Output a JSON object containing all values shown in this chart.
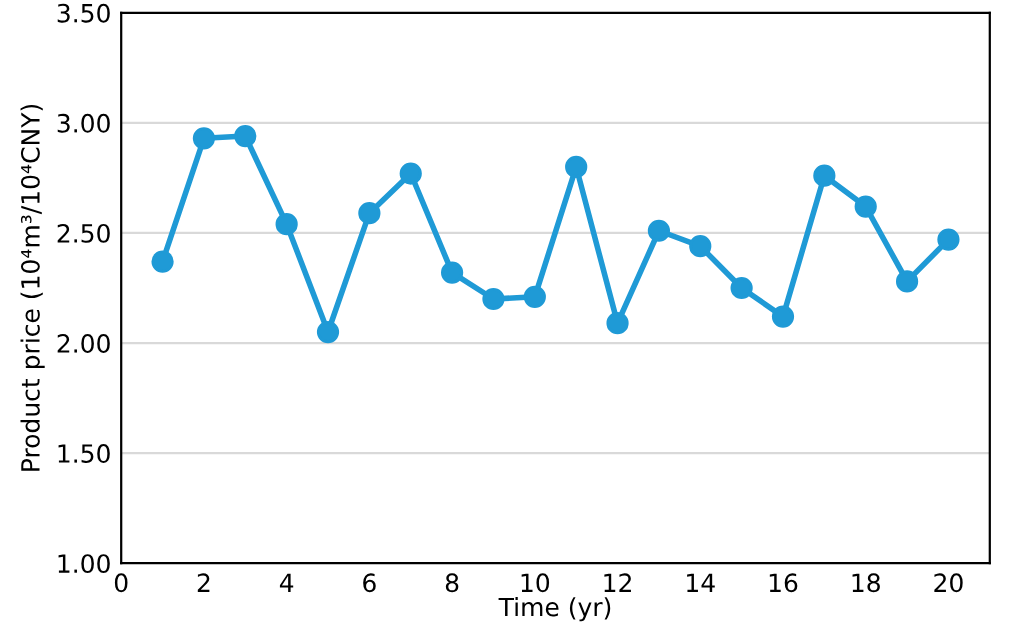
{
  "chart_data": {
    "type": "line",
    "xlabel": "Time (yr)",
    "ylabel": "Product price (10⁴m³/10⁴CNY)",
    "x": [
      1,
      2,
      3,
      4,
      5,
      6,
      7,
      8,
      9,
      10,
      11,
      12,
      13,
      14,
      15,
      16,
      17,
      18,
      19,
      20
    ],
    "series": [
      {
        "color": "#1f9ad6",
        "values": [
          2.37,
          2.93,
          2.94,
          2.54,
          2.05,
          2.59,
          2.77,
          2.32,
          2.2,
          2.21,
          2.8,
          2.09,
          2.51,
          2.44,
          2.25,
          2.12,
          2.76,
          2.62,
          2.28,
          2.47
        ]
      }
    ],
    "xlim": [
      0,
      21
    ],
    "xticks": [
      0,
      2,
      4,
      6,
      8,
      10,
      12,
      14,
      16,
      18,
      20
    ],
    "ylim": [
      1.0,
      3.5
    ],
    "yticks": [
      {
        "value": 1.0,
        "label": "1.00"
      },
      {
        "value": 1.5,
        "label": "1.50"
      },
      {
        "value": 2.0,
        "label": "2.00"
      },
      {
        "value": 2.5,
        "label": "2.50"
      },
      {
        "value": 3.0,
        "label": "3.00"
      },
      {
        "value": 3.5,
        "label": "3.50"
      }
    ],
    "grid": "y",
    "marker": "circle",
    "line_style": "solid",
    "legend": false
  }
}
